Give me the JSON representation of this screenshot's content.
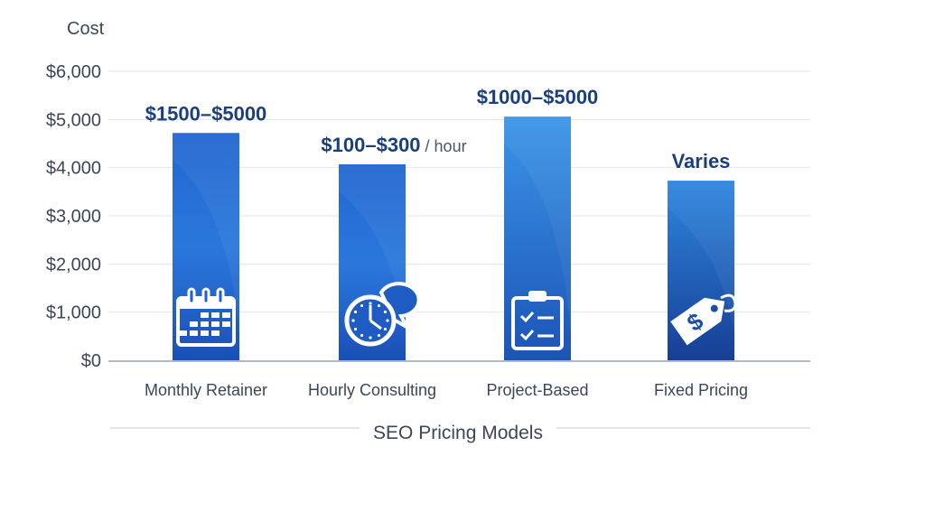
{
  "chart_data": {
    "type": "bar",
    "title": "",
    "xlabel": "SEO Pricing Models",
    "ylabel": "Cost",
    "ylim": [
      0,
      6000
    ],
    "yticks": [
      0,
      1000,
      2000,
      3000,
      4000,
      5000,
      6000
    ],
    "ytick_labels": [
      "$0",
      "$1,000",
      "$2,000",
      "$3,000",
      "$4,000",
      "$5,000",
      "$6,000"
    ],
    "grid": true,
    "categories": [
      "Monthly Retainer",
      "Hourly Consulting",
      "Project-Based",
      "Fixed Pricing"
    ],
    "values": [
      4720,
      4070,
      5060,
      3730
    ],
    "data_labels": [
      {
        "main": "$1500–$5000",
        "suffix": ""
      },
      {
        "main": "$100–$300",
        "suffix": " / hour"
      },
      {
        "main": "$1000–$5000",
        "suffix": ""
      },
      {
        "main": "Varies",
        "suffix": ""
      }
    ],
    "icons": [
      "calendar-icon",
      "clock-chat-icon",
      "clipboard-checklist-icon",
      "price-tag-dollar-icon"
    ],
    "colors": {
      "bar_light": "#2f86de",
      "bar_dark": "#1a4fb8",
      "label": "#1b3f7c",
      "axis_text": "#3c4658",
      "grid": "#e3e6ea"
    }
  }
}
